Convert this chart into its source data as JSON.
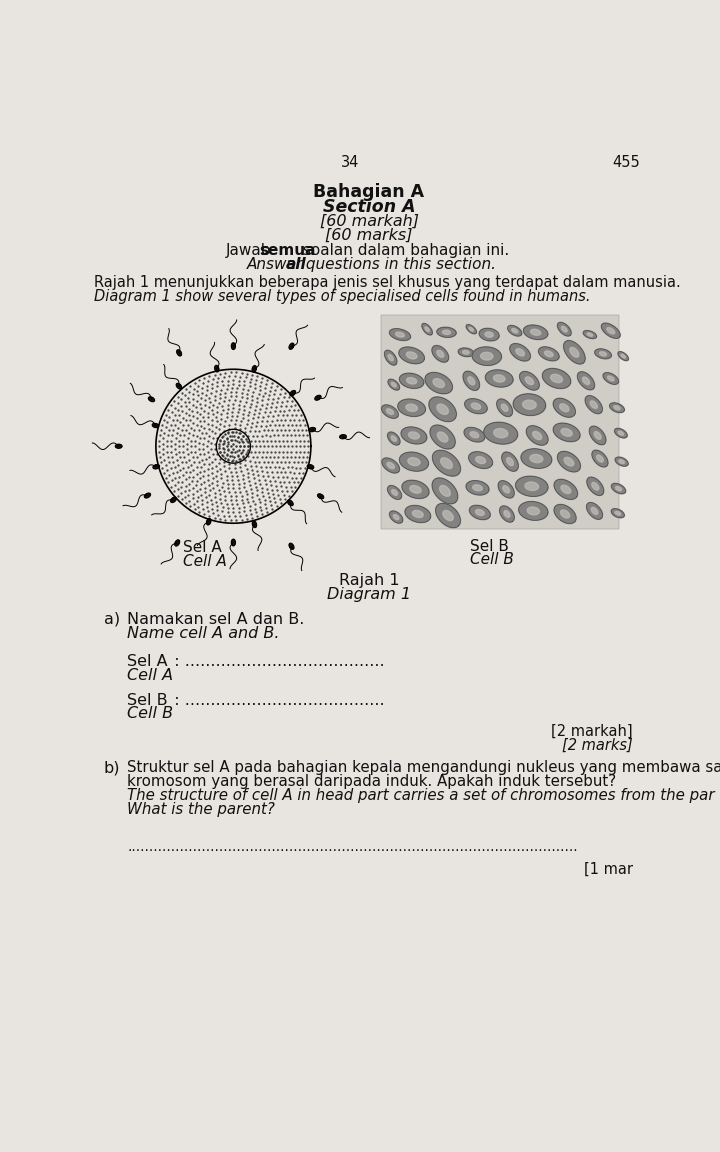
{
  "bg_color": "#e8e5e0",
  "text_color": "#111111",
  "page_num_left": "34",
  "page_num_right": "455",
  "header_line1": "Bahagian A",
  "header_line2": "Section A",
  "header_line3": "[60 markah]",
  "header_line4": "[60 marks]",
  "header_jawab1": "Jawab ",
  "header_jawab2": "semua",
  "header_jawab3": " soalan dalam bahagian ini.",
  "header_answer1": "Answer ",
  "header_answer2": "all",
  "header_answer3": " questions in this section.",
  "diagram_text1": "Rajah 1 menunjukkan beberapa jenis sel khusus yang terdapat dalam manusia.",
  "diagram_text2": "Diagram 1 show several types of specialised cells found in humans.",
  "label_sel_a_1": "Sel A",
  "label_sel_a_2": "Cell A",
  "label_sel_b_1": "Sel B",
  "label_sel_b_2": "Cell B",
  "diagram_label1": "Rajah 1",
  "diagram_label2": "Diagram 1",
  "q_a_num": "a)",
  "q_a_line1": "Namakan sel A dan B.",
  "q_a_line2": "Name cell A and B.",
  "sel_a_ans": "Sel A",
  "sel_a_dots": "  : .......................................",
  "cell_a_ans": "Cell A",
  "sel_b_ans": "Sel B",
  "sel_b_dots": "  : .......................................",
  "cell_b_ans": "Cell B",
  "marks1": "[2 markah]",
  "marks2": "[2 marks]",
  "q_b_num": "b)",
  "q_b1": "Struktur sel A pada bahagian kepala mengandungi nukleus yang membawa satu",
  "q_b2": "kromosom yang berasal daripada induk. Apakah induk tersebut?",
  "q_b3": "The structure of cell A in head part carries a set of chromosomes from the par",
  "q_b4": "What is the parent?",
  "ans_dots": ".......................................................................................................",
  "marks_b": "[1 mar"
}
